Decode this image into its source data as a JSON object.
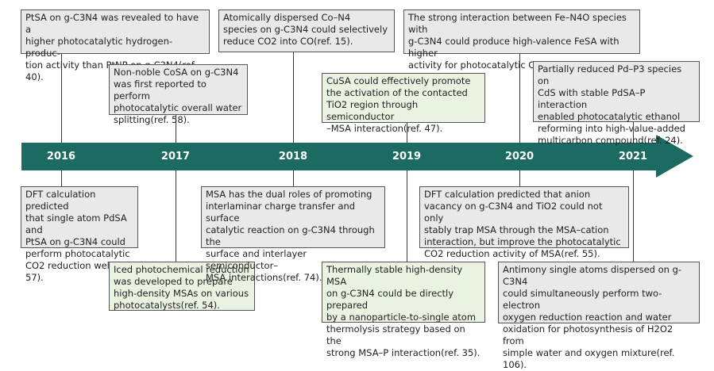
{
  "timeline": {
    "colors": {
      "arrow": "#1b6b63",
      "box_grey": "#e9e9e9",
      "box_green": "#eaf3e2"
    },
    "years": [
      "2016",
      "2017",
      "2018",
      "2019",
      "2020",
      "2021"
    ],
    "top_boxes": [
      {
        "text": "PtSA on g-C3N4 was revealed to have a\nhigher photocatalytic hydrogen-produc-\ntion activity than PtNP on g-C3N4(ref. 40)."
      },
      {
        "text": "Non-noble CoSA on g-C3N4\nwas first reported to perform\nphotocatalytic overall water\nsplitting(ref. 58)."
      },
      {
        "text": "Atomically dispersed Co–N4\nspecies on g-C3N4 could selectively\nreduce CO2 into CO(ref. 15)."
      },
      {
        "text": "CuSA could effectively promote\nthe activation of the contacted\nTiO2 region through semiconductor\n–MSA interaction(ref. 47)."
      },
      {
        "text": "The strong interaction between Fe–N4O species with\ng-C3N4 could produce high-valence FeSA with higher\nactivity for photocatalytic CO2 reduction(ref. 52)."
      },
      {
        "text": "Partially reduced Pd–P3 species on\nCdS with stable PdSA–P interaction\nenabled photocatalytic ethanol\nreforming into high-value-added\nmulticarbon compound(ref. 24)."
      }
    ],
    "bottom_boxes": [
      {
        "text": "DFT calculation predicted\nthat single atom PdSA and\nPtSA on g-C3N4 could\nperform photocatalytic\nCO2 reduction well(ref. 57)."
      },
      {
        "text": "Iced photochemical reduction\nwas developed to prepare\nhigh-density MSAs on various\nphotocatalysts(ref. 54)."
      },
      {
        "text": "MSA has the dual roles of promoting\ninterlaminar charge transfer and surface\ncatalytic reaction on g-C3N4 through the\nsurface and interlayer semiconductor–\nMSA interactions(ref. 74)."
      },
      {
        "text": "Thermally stable high-density MSA\non g-C3N4 could be directly prepared\nby a nanoparticle-to-single atom\nthermolysis strategy based on the\nstrong MSA–P interaction(ref. 35)."
      },
      {
        "text": "DFT calculation predicted that anion\nvacancy on g-C3N4 and TiO2 could not only\nstably trap MSA through the MSA–cation\ninteraction, but improve the photocatalytic\nCO2 reduction activity of MSA(ref. 55)."
      },
      {
        "text": "Antimony single atoms dispersed on g-C3N4\ncould simultaneously perform two-electron\noxygen reduction reaction and water\noxidation for photosynthesis of H2O2 from\nsimple water and oxygen mixture(ref. 106)."
      }
    ]
  }
}
